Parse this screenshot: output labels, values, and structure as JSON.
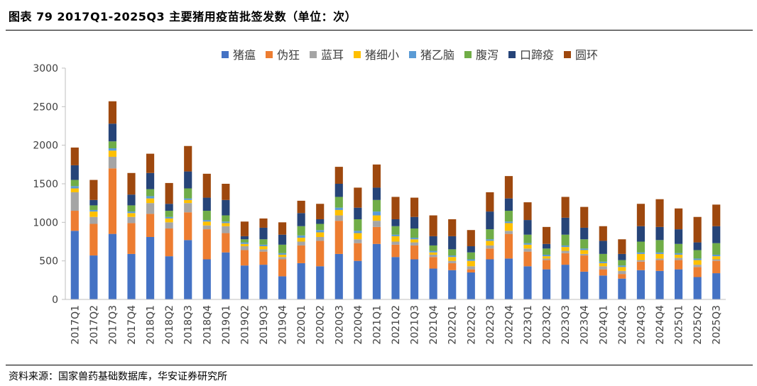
{
  "title": "图表 79 2017Q1-2025Q3 主要猪用疫苗批签发数（单位：次）",
  "source": "资料来源：国家兽药基础数据库，华安证券研究所",
  "chart_data": {
    "type": "bar",
    "stacked": true,
    "ylim": [
      0,
      3000
    ],
    "yticks": [
      0,
      500,
      1000,
      1500,
      2000,
      2500,
      3000
    ],
    "legend_position": "top",
    "grid": false,
    "categories": [
      "2017Q1",
      "2017Q2",
      "2017Q3",
      "2017Q4",
      "2018Q1",
      "2018Q2",
      "2018Q3",
      "2018Q4",
      "2019Q1",
      "2019Q2",
      "2019Q3",
      "2019Q4",
      "2020Q1",
      "2020Q2",
      "2020Q3",
      "2020Q4",
      "2021Q1",
      "2021Q2",
      "2021Q3",
      "2021Q4",
      "2022Q1",
      "2022Q2",
      "2022Q3",
      "2022Q4",
      "2023Q1",
      "2023Q2",
      "2023Q3",
      "2023Q4",
      "2024Q1",
      "2024Q2",
      "2024Q3",
      "2024Q4",
      "2025Q1",
      "2025Q2",
      "2025Q3"
    ],
    "series": [
      {
        "name": "猪瘟",
        "color": "#4472C4",
        "values": [
          890,
          570,
          850,
          590,
          810,
          560,
          770,
          520,
          610,
          440,
          450,
          300,
          470,
          430,
          590,
          500,
          720,
          550,
          520,
          400,
          380,
          350,
          520,
          530,
          430,
          390,
          450,
          360,
          310,
          270,
          380,
          370,
          390,
          290,
          340
        ]
      },
      {
        "name": "伪狂",
        "color": "#ED7D31",
        "values": [
          260,
          410,
          850,
          400,
          300,
          360,
          360,
          390,
          250,
          200,
          170,
          220,
          230,
          330,
          430,
          230,
          220,
          160,
          180,
          150,
          90,
          40,
          140,
          320,
          190,
          120,
          150,
          210,
          80,
          60,
          110,
          140,
          120,
          130,
          160
        ]
      },
      {
        "name": "蓝耳",
        "color": "#A5A5A5",
        "values": [
          240,
          90,
          150,
          80,
          140,
          80,
          120,
          50,
          90,
          50,
          30,
          30,
          50,
          50,
          70,
          50,
          80,
          40,
          40,
          30,
          30,
          40,
          40,
          40,
          40,
          20,
          30,
          20,
          40,
          40,
          20,
          20,
          30,
          30,
          20
        ]
      },
      {
        "name": "猪细小",
        "color": "#FFC000",
        "values": [
          50,
          70,
          80,
          50,
          60,
          50,
          40,
          50,
          40,
          30,
          40,
          30,
          50,
          60,
          70,
          80,
          70,
          70,
          40,
          30,
          50,
          70,
          60,
          100,
          50,
          30,
          50,
          50,
          40,
          50,
          80,
          60,
          40,
          60,
          40
        ]
      },
      {
        "name": "猪乙脑",
        "color": "#5B9BD5",
        "values": [
          30,
          20,
          30,
          20,
          30,
          20,
          20,
          20,
          20,
          20,
          20,
          20,
          30,
          30,
          30,
          30,
          50,
          20,
          20,
          20,
          20,
          20,
          20,
          20,
          20,
          20,
          20,
          20,
          20,
          20,
          20,
          20,
          20,
          20,
          20
        ]
      },
      {
        "name": "腹泻",
        "color": "#70AD47",
        "values": [
          80,
          60,
          90,
          80,
          90,
          80,
          130,
          120,
          80,
          40,
          70,
          110,
          120,
          80,
          140,
          150,
          150,
          110,
          120,
          70,
          80,
          90,
          130,
          140,
          110,
          80,
          140,
          120,
          100,
          70,
          140,
          160,
          120,
          110,
          150
        ]
      },
      {
        "name": "口蹄疫",
        "color": "#264478",
        "values": [
          190,
          70,
          230,
          140,
          210,
          90,
          220,
          170,
          200,
          40,
          150,
          130,
          170,
          60,
          170,
          150,
          160,
          90,
          150,
          120,
          170,
          80,
          230,
          160,
          190,
          60,
          220,
          150,
          170,
          80,
          200,
          170,
          190,
          100,
          220
        ]
      },
      {
        "name": "圆环",
        "color": "#9E480E",
        "values": [
          230,
          260,
          290,
          280,
          250,
          270,
          330,
          310,
          210,
          190,
          120,
          160,
          160,
          200,
          220,
          260,
          300,
          290,
          250,
          270,
          220,
          210,
          250,
          290,
          230,
          220,
          270,
          270,
          190,
          190,
          290,
          360,
          270,
          330,
          280
        ]
      }
    ]
  }
}
